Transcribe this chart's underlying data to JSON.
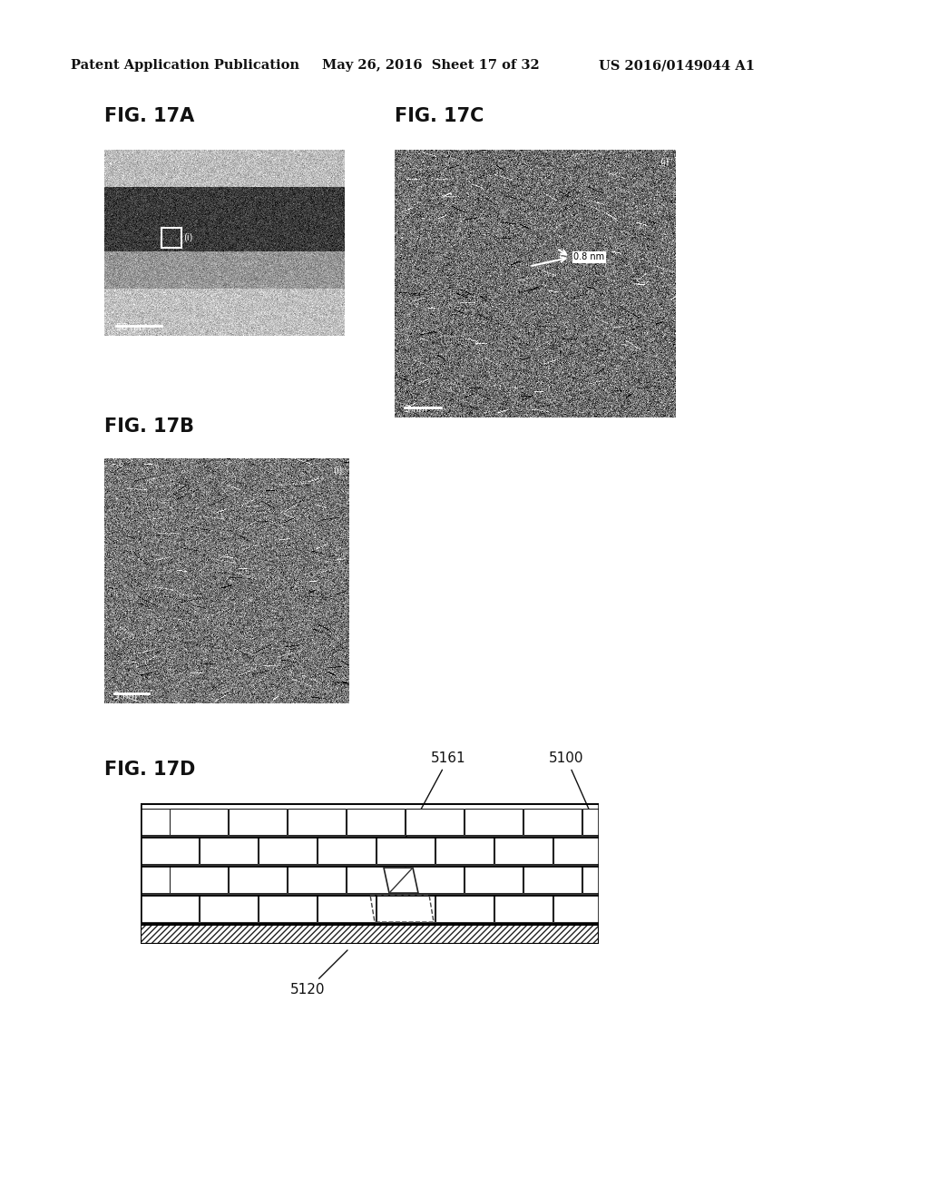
{
  "background_color": "#ffffff",
  "header_left": "Patent Application Publication",
  "header_mid": "May 26, 2016  Sheet 17 of 32",
  "header_right": "US 2016/0149044 A1",
  "fig17A_label": "FIG. 17A",
  "fig17B_label": "FIG. 17B",
  "fig17C_label": "FIG. 17C",
  "fig17D_label": "FIG. 17D",
  "label_5161": "5161",
  "label_5100": "5100",
  "label_5120": "5120",
  "scale_17A": "50 nm",
  "scale_17B": "3 nm",
  "scale_17C": "3 nm",
  "ann_08nm": "0.8 nm"
}
